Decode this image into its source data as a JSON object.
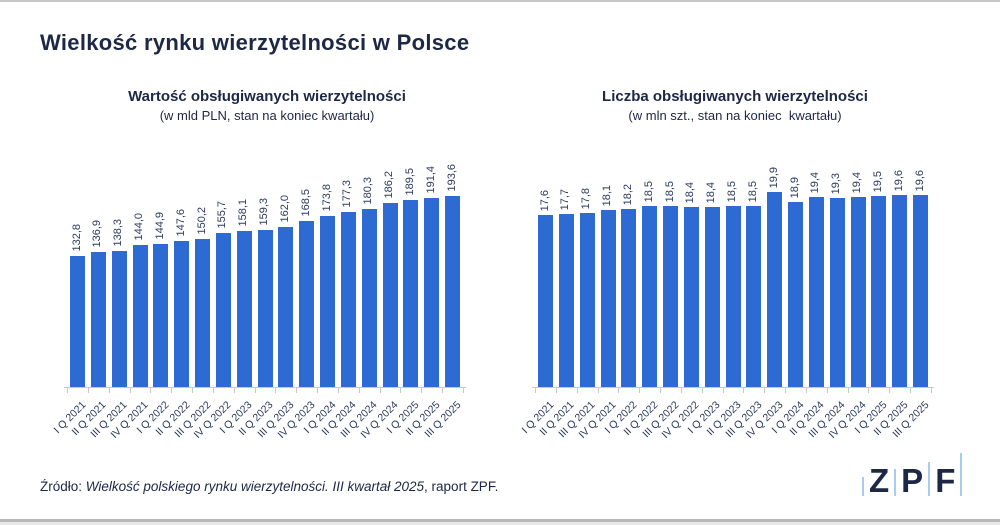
{
  "header": {
    "title": "Wielkość rynku wierzytelności w Polsce"
  },
  "footer": {
    "prefix": "Źródło: ",
    "italic": "Wielkość polskiego rynku wierzytelności. III kwartał 2025",
    "suffix": ", raport ZPF."
  },
  "logo": {
    "letters": {
      "z": "Z",
      "p": "P",
      "f": "F"
    },
    "accent_color": "#a9cdee",
    "text_color": "#1d2746"
  },
  "colors": {
    "bar": "#2d6bd2",
    "text": "#1d2746",
    "value_label": "#2d3b60",
    "axis": "#c9c9c9"
  },
  "chart_data": [
    {
      "type": "bar",
      "title": "Wartość obsługiwanych wierzytelności",
      "subtitle": "(w mld PLN, stan na koniec kwartału)",
      "unit": "mld PLN",
      "grid": false,
      "legend_position": "none",
      "ylim": [
        0,
        193.6
      ],
      "categories": [
        "I Q 2021",
        "II Q 2021",
        "III Q 2021",
        "IV Q 2021",
        "I Q 2022",
        "II Q 2022",
        "III Q 2022",
        "IV Q 2022",
        "I Q 2023",
        "II Q 2023",
        "III Q 2023",
        "IV Q 2023",
        "I Q 2024",
        "II Q 2024",
        "III Q 2024",
        "IV Q 2024",
        "I Q 2025",
        "II Q 2025",
        "III Q 2025"
      ],
      "values": [
        132.8,
        136.9,
        138.3,
        144.0,
        144.9,
        147.6,
        150.2,
        155.7,
        158.1,
        159.3,
        162.0,
        168.5,
        173.8,
        177.3,
        180.3,
        186.2,
        189.5,
        191.4,
        193.6
      ],
      "value_labels": [
        "132,8",
        "136,9",
        "138,3",
        "144,0",
        "144,9",
        "147,6",
        "150,2",
        "155,7",
        "158,1",
        "159,3",
        "162,0",
        "168,5",
        "173,8",
        "177,3",
        "180,3",
        "186,2",
        "189,5",
        "191,4",
        "193,6"
      ]
    },
    {
      "type": "bar",
      "title": "Liczba obsługiwanych wierzytelności",
      "subtitle": "(w mln szt., stan na koniec  kwartału)",
      "unit": "mln szt.",
      "grid": false,
      "legend_position": "none",
      "ylim": [
        0,
        19.9
      ],
      "categories": [
        "I Q 2021",
        "II Q 2021",
        "III Q 2021",
        "IV Q 2021",
        "I Q 2022",
        "II Q 2022",
        "III Q 2022",
        "IV Q 2022",
        "I Q 2023",
        "II Q 2023",
        "III Q 2023",
        "IV Q 2023",
        "I Q 2024",
        "II Q 2024",
        "III Q 2024",
        "IV Q 2024",
        "I Q 2025",
        "II Q 2025",
        "III Q 2025"
      ],
      "values": [
        17.6,
        17.7,
        17.8,
        18.1,
        18.2,
        18.5,
        18.5,
        18.4,
        18.4,
        18.5,
        18.5,
        19.9,
        18.9,
        19.4,
        19.3,
        19.4,
        19.5,
        19.6,
        19.6
      ],
      "value_labels": [
        "17,6",
        "17,7",
        "17,8",
        "18,1",
        "18,2",
        "18,5",
        "18,5",
        "18,4",
        "18,4",
        "18,5",
        "18,5",
        "19,9",
        "18,9",
        "19,4",
        "19,3",
        "19,4",
        "19,5",
        "19,6",
        "19,6"
      ]
    }
  ]
}
